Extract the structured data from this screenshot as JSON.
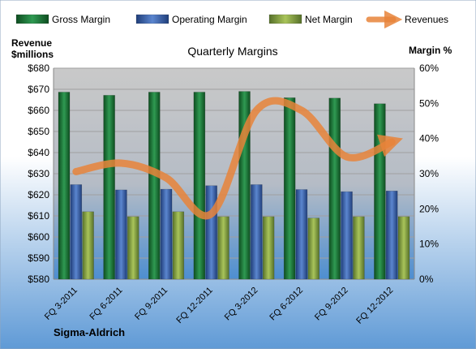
{
  "chart_data": {
    "type": "bar",
    "title": "Quarterly Margins",
    "company": "Sigma-Aldrich",
    "left_axis_label_line1": "Revenue",
    "left_axis_label_line2": "$millions",
    "right_axis_label": "Margin %",
    "categories": [
      "FQ 3-2011",
      "FQ 6-2011",
      "FQ 9-2011",
      "FQ 12-2011",
      "FQ 3-2012",
      "FQ 6-2012",
      "FQ 9-2012",
      "FQ 12-2012"
    ],
    "ylim_left": [
      580,
      680
    ],
    "yticks_left": [
      "$580",
      "$590",
      "$600",
      "$610",
      "$620",
      "$630",
      "$640",
      "$650",
      "$660",
      "$670",
      "$680"
    ],
    "ylim_right": [
      0,
      60
    ],
    "yticks_right": [
      "0%",
      "10%",
      "20%",
      "30%",
      "40%",
      "50%",
      "60%"
    ],
    "grid": true,
    "legend_placement": "top",
    "series": [
      {
        "name": "Gross Margin",
        "axis": "right",
        "kind": "bar",
        "color": "#1f7a3a",
        "values": [
          53.2,
          52.3,
          53.2,
          53.2,
          53.4,
          51.6,
          51.5,
          49.9
        ]
      },
      {
        "name": "Operating Margin",
        "axis": "right",
        "kind": "bar",
        "color": "#3a64b0",
        "values": [
          26.9,
          25.4,
          25.6,
          26.6,
          26.9,
          25.5,
          24.9,
          25.1
        ]
      },
      {
        "name": "Net Margin",
        "axis": "right",
        "kind": "bar",
        "color": "#8aa63c",
        "values": [
          19.2,
          17.8,
          19.2,
          17.8,
          17.8,
          17.4,
          17.8,
          17.8
        ]
      },
      {
        "name": "Revenues",
        "axis": "left",
        "kind": "line",
        "color": "#e8843a",
        "values": [
          631,
          635,
          628,
          611,
          660,
          660,
          638,
          645
        ]
      }
    ]
  }
}
